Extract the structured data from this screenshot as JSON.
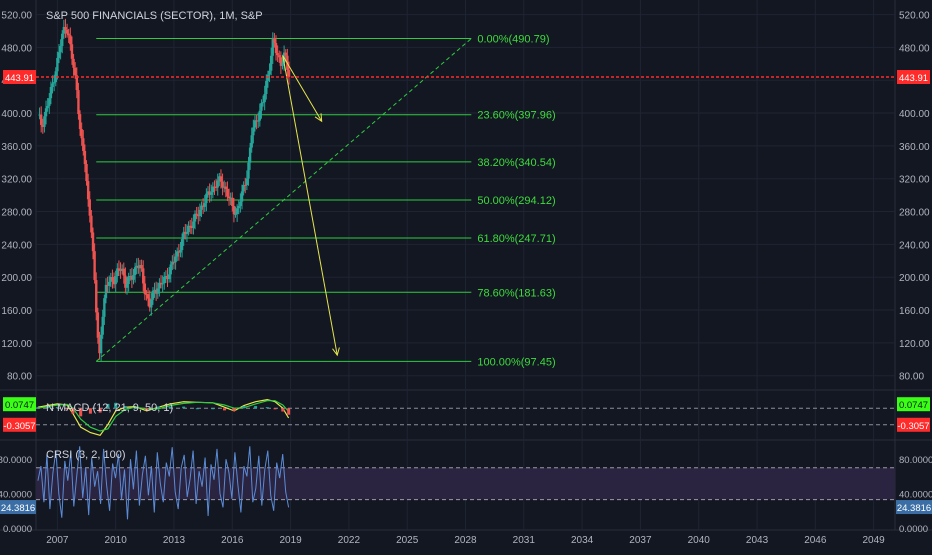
{
  "header": {
    "title": "S&P 500 FINANCIALS (SECTOR), 1M, S&P"
  },
  "colors": {
    "background": "#131722",
    "grid": "#1f2433",
    "candle_up": "#26a69a",
    "candle_down": "#ef5350",
    "fib_line": "#2ecc40",
    "fib_text": "#3ddc3d",
    "price_line": "#ff2b2b",
    "trend_line": "#2ecc40",
    "arrow": "#e6e64c",
    "crsi_line": "#5b8bd6",
    "crsi_band": "#2a2440"
  },
  "chart_data": [
    {
      "type": "candlestick",
      "title": "S&P 500 FINANCIALS (SECTOR), 1M, S&P",
      "xlabel": "",
      "ylabel": "",
      "x_ticks": [
        "2007",
        "2010",
        "2013",
        "2016",
        "2019",
        "2022",
        "2025",
        "2028",
        "2031",
        "2034",
        "2037",
        "2040",
        "2043",
        "2046",
        "2049"
      ],
      "xlim": [
        2005.9,
        2050.1
      ],
      "y_ticks": [
        "520.00",
        "480.00",
        "440.00",
        "400.00",
        "360.00",
        "320.00",
        "280.00",
        "240.00",
        "200.00",
        "160.00",
        "120.00",
        "80.00"
      ],
      "ylim": [
        65,
        528
      ],
      "grid": true,
      "last_price": "443.91",
      "price_path": [
        [
          2006.0,
          398
        ],
        [
          2006.2,
          385
        ],
        [
          2006.5,
          410
        ],
        [
          2006.8,
          440
        ],
        [
          2007.1,
          475
        ],
        [
          2007.3,
          500
        ],
        [
          2007.45,
          508
        ],
        [
          2007.6,
          490
        ],
        [
          2007.8,
          460
        ],
        [
          2008.0,
          430
        ],
        [
          2008.2,
          370
        ],
        [
          2008.4,
          345
        ],
        [
          2008.55,
          300
        ],
        [
          2008.7,
          275
        ],
        [
          2008.85,
          220
        ],
        [
          2009.0,
          160
        ],
        [
          2009.15,
          100
        ],
        [
          2009.3,
          150
        ],
        [
          2009.5,
          185
        ],
        [
          2009.7,
          200
        ],
        [
          2009.9,
          195
        ],
        [
          2010.1,
          205
        ],
        [
          2010.3,
          215
        ],
        [
          2010.5,
          190
        ],
        [
          2010.8,
          200
        ],
        [
          2011.1,
          215
        ],
        [
          2011.3,
          210
        ],
        [
          2011.5,
          185
        ],
        [
          2011.75,
          165
        ],
        [
          2012.0,
          185
        ],
        [
          2012.3,
          190
        ],
        [
          2012.6,
          200
        ],
        [
          2012.9,
          215
        ],
        [
          2013.2,
          230
        ],
        [
          2013.5,
          250
        ],
        [
          2013.8,
          262
        ],
        [
          2014.2,
          275
        ],
        [
          2014.5,
          290
        ],
        [
          2014.8,
          302
        ],
        [
          2015.1,
          312
        ],
        [
          2015.4,
          318
        ],
        [
          2015.7,
          305
        ],
        [
          2016.0,
          285
        ],
        [
          2016.2,
          278
        ],
        [
          2016.5,
          300
        ],
        [
          2016.8,
          330
        ],
        [
          2017.0,
          375
        ],
        [
          2017.3,
          395
        ],
        [
          2017.6,
          415
        ],
        [
          2017.9,
          455
        ],
        [
          2018.1,
          490
        ],
        [
          2018.3,
          470
        ],
        [
          2018.5,
          462
        ],
        [
          2018.7,
          472
        ],
        [
          2018.9,
          445
        ]
      ]
    },
    {
      "type": "fibonacci-retracement",
      "levels": [
        {
          "label": "0.00%(490.79)",
          "ratio": 0.0,
          "price": 490.79
        },
        {
          "label": "23.60%(397.96)",
          "ratio": 0.236,
          "price": 397.96
        },
        {
          "label": "38.20%(340.54)",
          "ratio": 0.382,
          "price": 340.54
        },
        {
          "label": "50.00%(294.12)",
          "ratio": 0.5,
          "price": 294.12
        },
        {
          "label": "61.80%(247.71)",
          "ratio": 0.618,
          "price": 247.71
        },
        {
          "label": "78.60%(181.63)",
          "ratio": 0.786,
          "price": 181.63
        },
        {
          "label": "100.00%(97.45)",
          "ratio": 1.0,
          "price": 97.45
        }
      ],
      "x_start": 2009.0,
      "x_end": 2028.3,
      "trend_line": {
        "from": [
          2009.0,
          97.45
        ],
        "to": [
          2028.3,
          490.79
        ]
      },
      "arrows": [
        {
          "from": [
            2018.6,
            470
          ],
          "to": [
            2020.6,
            390
          ]
        },
        {
          "from": [
            2018.6,
            470
          ],
          "to": [
            2021.4,
            105
          ]
        }
      ]
    },
    {
      "type": "line",
      "title": "N MACD (12, 21, 9, 50, 1)",
      "ylim": [
        -0.55,
        0.3
      ],
      "y_tick_labels": [
        "0.0747",
        "-0.3057"
      ],
      "series": [
        {
          "name": "macd",
          "points": [
            [
              2006.0,
              0.02
            ],
            [
              2006.5,
              0.05
            ],
            [
              2007.0,
              0.08
            ],
            [
              2007.5,
              0.06
            ],
            [
              2007.8,
              -0.1
            ],
            [
              2008.2,
              -0.35
            ],
            [
              2008.7,
              -0.45
            ],
            [
              2009.2,
              -0.5
            ],
            [
              2009.6,
              -0.3
            ],
            [
              2010.0,
              -0.05
            ],
            [
              2010.5,
              0.02
            ],
            [
              2011.0,
              0.03
            ],
            [
              2011.6,
              -0.05
            ],
            [
              2012.2,
              0.02
            ],
            [
              2012.8,
              0.08
            ],
            [
              2013.5,
              0.12
            ],
            [
              2014.2,
              0.11
            ],
            [
              2015.0,
              0.1
            ],
            [
              2015.6,
              0.02
            ],
            [
              2016.1,
              -0.05
            ],
            [
              2016.6,
              0.05
            ],
            [
              2017.2,
              0.12
            ],
            [
              2017.8,
              0.16
            ],
            [
              2018.2,
              0.12
            ],
            [
              2018.6,
              0.0
            ],
            [
              2018.9,
              -0.18
            ]
          ]
        },
        {
          "name": "signal",
          "points": [
            [
              2006.0,
              0.0
            ],
            [
              2006.5,
              0.03
            ],
            [
              2007.0,
              0.06
            ],
            [
              2007.5,
              0.07
            ],
            [
              2007.8,
              0.0
            ],
            [
              2008.2,
              -0.2
            ],
            [
              2008.7,
              -0.35
            ],
            [
              2009.2,
              -0.42
            ],
            [
              2009.6,
              -0.38
            ],
            [
              2010.0,
              -0.15
            ],
            [
              2010.5,
              -0.02
            ],
            [
              2011.0,
              0.02
            ],
            [
              2011.6,
              -0.01
            ],
            [
              2012.2,
              -0.01
            ],
            [
              2012.8,
              0.05
            ],
            [
              2013.5,
              0.09
            ],
            [
              2014.2,
              0.11
            ],
            [
              2015.0,
              0.1
            ],
            [
              2015.6,
              0.06
            ],
            [
              2016.1,
              0.0
            ],
            [
              2016.6,
              0.01
            ],
            [
              2017.2,
              0.08
            ],
            [
              2017.8,
              0.14
            ],
            [
              2018.2,
              0.14
            ],
            [
              2018.6,
              0.06
            ],
            [
              2018.9,
              -0.06
            ]
          ]
        }
      ]
    },
    {
      "type": "line",
      "title": "CRSI (3, 2, 100)",
      "ylim": [
        0,
        100
      ],
      "y_ticks": [
        "80.0000",
        "40.0000",
        "0.0000"
      ],
      "bands": [
        33,
        70
      ],
      "last_value": "24.3816",
      "x_start": 2006.0,
      "x_end": 2018.9,
      "series": [
        {
          "name": "crsi",
          "values": [
            55,
            72,
            30,
            85,
            22,
            64,
            90,
            40,
            12,
            78,
            55,
            88,
            25,
            60,
            95,
            35,
            70,
            15,
            82,
            48,
            66,
            28,
            92,
            50,
            20,
            75,
            58,
            86,
            33,
            68,
            10,
            80,
            45,
            90,
            26,
            62,
            84,
            38,
            72,
            18,
            88,
            52,
            30,
            76,
            60,
            94,
            42,
            22,
            70,
            85,
            36,
            58,
            90,
            28,
            66,
            48,
            82,
            14,
            74,
            56,
            92,
            40,
            24,
            80,
            64,
            34,
            88,
            50,
            18,
            72,
            60,
            95,
            30,
            46,
            84,
            26,
            68,
            90,
            38,
            20,
            76,
            58,
            86,
            42,
            24
          ]
        }
      ]
    }
  ]
}
